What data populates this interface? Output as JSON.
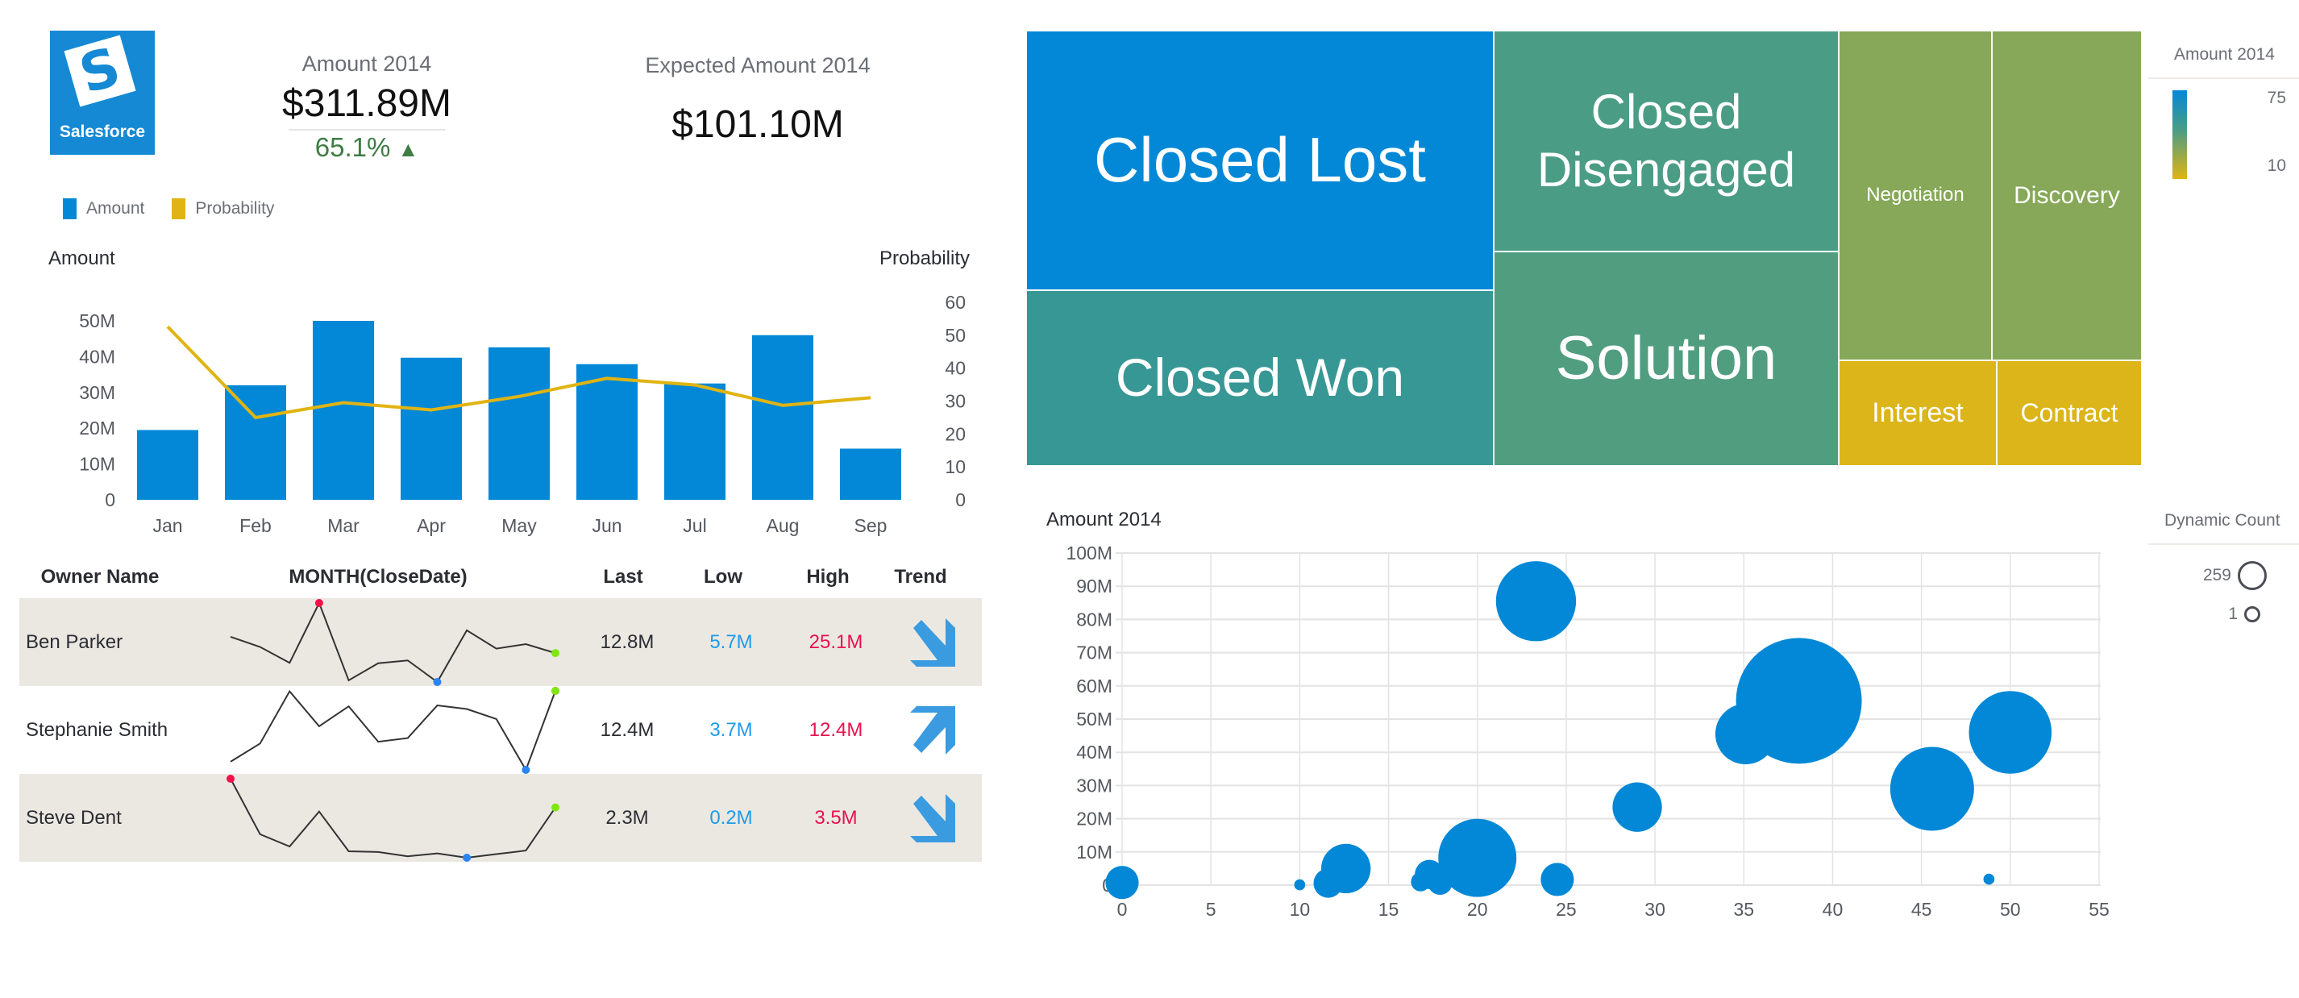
{
  "logo": {
    "glyph": "S",
    "name": "Salesforce",
    "color": "#1589d4"
  },
  "kpis": {
    "amount": {
      "label": "Amount 2014",
      "value": "$311.89M",
      "delta": "65.1%",
      "delta_icon": "triangle-up-icon",
      "delta_color": "#3f7d44"
    },
    "expected": {
      "label": "Expected Amount 2014",
      "value": "$101.10M"
    }
  },
  "bar_legend": [
    {
      "label": "Amount",
      "color": "#0288d6"
    },
    {
      "label": "Probability",
      "color": "#e0b413"
    }
  ],
  "table": {
    "headers": [
      "Owner Name",
      "MONTH(CloseDate)",
      "Last",
      "Low",
      "High",
      "Trend"
    ],
    "rows": [
      {
        "name": "Ben Parker",
        "last": "12.8M",
        "low": "5.7M",
        "high": "25.1M",
        "trend": "down",
        "spark": [
          16.8,
          14.3,
          10.4,
          25.1,
          6.1,
          10.3,
          11.0,
          5.7,
          18.4,
          13.9,
          15.0,
          12.8
        ]
      },
      {
        "name": "Stephanie Smith",
        "last": "12.4M",
        "low": "3.7M",
        "high": "12.4M",
        "trend": "up",
        "spark": [
          4.6,
          6.6,
          12.35,
          8.5,
          10.7,
          6.8,
          7.2,
          10.8,
          10.4,
          9.3,
          3.7,
          12.4
        ]
      },
      {
        "name": "Steve Dent",
        "last": "2.3M",
        "low": "0.2M",
        "high": "3.5M",
        "trend": "down",
        "spark": [
          3.5,
          1.18,
          0.67,
          2.13,
          0.47,
          0.44,
          0.26,
          0.38,
          0.2,
          0.35,
          0.5,
          2.3
        ]
      }
    ],
    "colors": {
      "high_dot": "#f5104a",
      "low_dot": "#2a84f2",
      "last_dot": "#7fe60e",
      "trend_arrow": "#3a9be0"
    }
  },
  "treemap_legend": {
    "title": "Amount 2014",
    "max_label": "75",
    "min_label": "10"
  },
  "bubble_legend": {
    "title": "Dynamic Count",
    "items": [
      {
        "label": "259"
      },
      {
        "label": "1"
      }
    ]
  },
  "chart_data": [
    {
      "type": "bar",
      "title": "",
      "categories": [
        "Jan",
        "Feb",
        "Mar",
        "Apr",
        "May",
        "Jun",
        "Jul",
        "Aug",
        "Sep"
      ],
      "series": [
        {
          "name": "Amount",
          "kind": "bar",
          "axis": "left",
          "color": "#0288d6",
          "values": [
            19.5,
            32.0,
            50.0,
            39.7,
            42.6,
            37.9,
            32.5,
            46.0,
            14.3
          ]
        },
        {
          "name": "Probability",
          "kind": "line",
          "axis": "right",
          "color": "#e0b413",
          "values": [
            52.6,
            25.0,
            29.5,
            27.3,
            31.4,
            36.9,
            34.9,
            28.7,
            31.0
          ]
        }
      ],
      "ylabel": "Amount",
      "y2label": "Probability",
      "ylim": [
        0,
        50
      ],
      "y2lim": [
        0,
        60
      ],
      "yticks": [
        "0",
        "10M",
        "20M",
        "30M",
        "40M",
        "50M"
      ],
      "y2ticks": [
        "0",
        "10",
        "20",
        "30",
        "40",
        "50",
        "60"
      ],
      "legend": "top-left",
      "grid": false
    },
    {
      "type": "treemap",
      "color_metric": "Amount 2014",
      "cells": [
        {
          "label": "Closed Lost",
          "color": "#0288d6",
          "size": "xl"
        },
        {
          "label": "Closed Won",
          "color": "#379795"
        },
        {
          "label": "Closed Disengaged",
          "color": "#4b9c85"
        },
        {
          "label": "Solution",
          "color": "#519d7f"
        },
        {
          "label": "Negotiation",
          "color": "#86a858"
        },
        {
          "label": "Discovery",
          "color": "#86a858"
        },
        {
          "label": "Interest",
          "color": "#dbb51a"
        },
        {
          "label": "Contract",
          "color": "#dbb51a"
        }
      ]
    },
    {
      "type": "scatter",
      "subtype": "bubble",
      "ylabel": "Amount 2014",
      "xlim": [
        0,
        55
      ],
      "ylim": [
        0,
        100
      ],
      "xticks": [
        "0",
        "5",
        "10",
        "15",
        "20",
        "25",
        "30",
        "35",
        "40",
        "45",
        "50",
        "55"
      ],
      "yticks": [
        "0",
        "10M",
        "20M",
        "30M",
        "40M",
        "50M",
        "60M",
        "70M",
        "80M",
        "90M",
        "100M"
      ],
      "grid": true,
      "color": "#0288d6",
      "size_metric": "Dynamic Count",
      "points": [
        {
          "x": 0,
          "y": 0.8,
          "size": 18
        },
        {
          "x": 10,
          "y": 0.1,
          "size": 2
        },
        {
          "x": 11.6,
          "y": 0.6,
          "size": 14
        },
        {
          "x": 12.6,
          "y": 5.0,
          "size": 40
        },
        {
          "x": 16.8,
          "y": 1.0,
          "size": 6
        },
        {
          "x": 17.3,
          "y": 3.2,
          "size": 14
        },
        {
          "x": 17.9,
          "y": 0.8,
          "size": 10
        },
        {
          "x": 20.0,
          "y": 8.2,
          "size": 100
        },
        {
          "x": 23.3,
          "y": 85.5,
          "size": 105
        },
        {
          "x": 24.5,
          "y": 1.7,
          "size": 18
        },
        {
          "x": 29.0,
          "y": 23.5,
          "size": 40
        },
        {
          "x": 35.1,
          "y": 45.5,
          "size": 60
        },
        {
          "x": 38.1,
          "y": 55.5,
          "size": 259
        },
        {
          "x": 45.6,
          "y": 29.0,
          "size": 115
        },
        {
          "x": 48.8,
          "y": 1.8,
          "size": 2
        },
        {
          "x": 50.0,
          "y": 46.0,
          "size": 112
        }
      ]
    }
  ]
}
